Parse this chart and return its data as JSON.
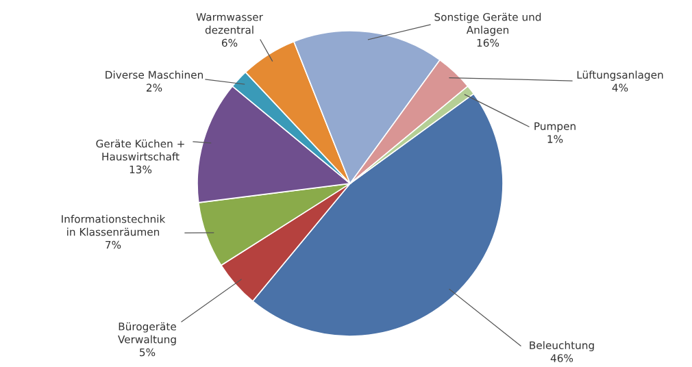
{
  "chart_data": {
    "type": "pie",
    "categories": [
      "Beleuchtung",
      "Bürogeräte\nVerwaltung",
      "Informationstechnik\nin Klassenräumen",
      "Geräte Küchen +\nHauswirtschaft",
      "Diverse Maschinen",
      "Warmwasser\ndezentral",
      "Sonstige Geräte und\nAnlagen",
      "Lüftungsanlagen",
      "Pumpen"
    ],
    "values": [
      46,
      5,
      7,
      13,
      2,
      6,
      16,
      4,
      1
    ],
    "colors": [
      "#4a72a8",
      "#b5413e",
      "#8aab4a",
      "#6f4f8e",
      "#3a9ab8",
      "#e58a32",
      "#93a9d0",
      "#d99594",
      "#b5cf95"
    ],
    "value_labels": [
      "46%",
      "5%",
      "7%",
      "13%",
      "2%",
      "6%",
      "16%",
      "4%",
      "1%"
    ]
  }
}
